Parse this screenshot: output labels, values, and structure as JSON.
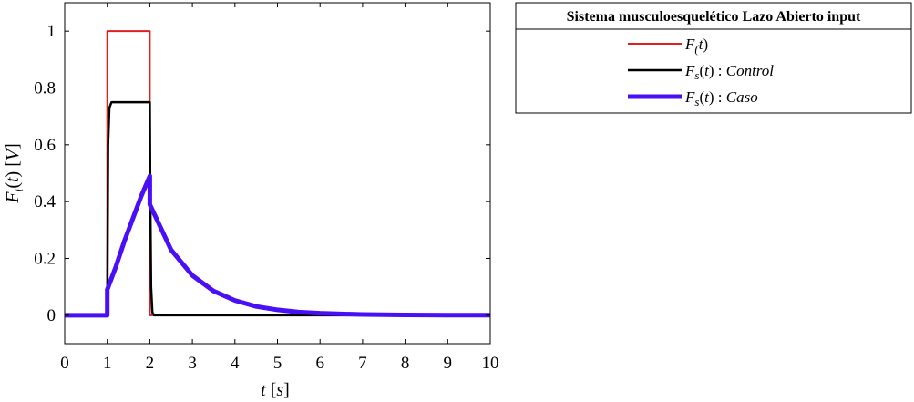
{
  "chart_data": {
    "type": "line",
    "xlabel": "t [s]",
    "ylabel": "F_i(t) [V]",
    "xlim": [
      0,
      10
    ],
    "ylim": [
      -0.1,
      1.1
    ],
    "xticks": [
      0,
      1,
      2,
      3,
      4,
      5,
      6,
      7,
      8,
      9,
      10
    ],
    "yticks": [
      0,
      0.2,
      0.4,
      0.6,
      0.8,
      1
    ],
    "grid": false,
    "legend": {
      "title": "Sistema musculoesquelético Lazo Abierto input",
      "placement": "outside-top-right"
    },
    "series": [
      {
        "name": "F_(t)",
        "color": "#e02020",
        "x": [
          0,
          1,
          1,
          2,
          2,
          10
        ],
        "y": [
          0,
          0,
          1,
          1,
          0,
          0
        ]
      },
      {
        "name": "F_s(t) : Control",
        "color": "#000000",
        "x": [
          0,
          1,
          1.02,
          1.05,
          1.1,
          1.2,
          2,
          2.01,
          2.03,
          2.06,
          2.1,
          10
        ],
        "y": [
          0,
          0,
          0.6,
          0.73,
          0.75,
          0.75,
          0.75,
          0.45,
          0.1,
          0.01,
          0,
          0
        ]
      },
      {
        "name": "F_s(t) : Caso",
        "color": "#4a10f5",
        "x": [
          0,
          1,
          1,
          1.2,
          1.4,
          1.6,
          1.8,
          2,
          2,
          2.5,
          3,
          3.5,
          4,
          4.5,
          5,
          5.5,
          6,
          7,
          8,
          9,
          10
        ],
        "y": [
          0,
          0,
          0.09,
          0.17,
          0.26,
          0.34,
          0.42,
          0.49,
          0.39,
          0.23,
          0.14,
          0.085,
          0.052,
          0.031,
          0.019,
          0.011,
          0.007,
          0.0025,
          0.0009,
          0.0003,
          0.0001
        ]
      }
    ]
  }
}
